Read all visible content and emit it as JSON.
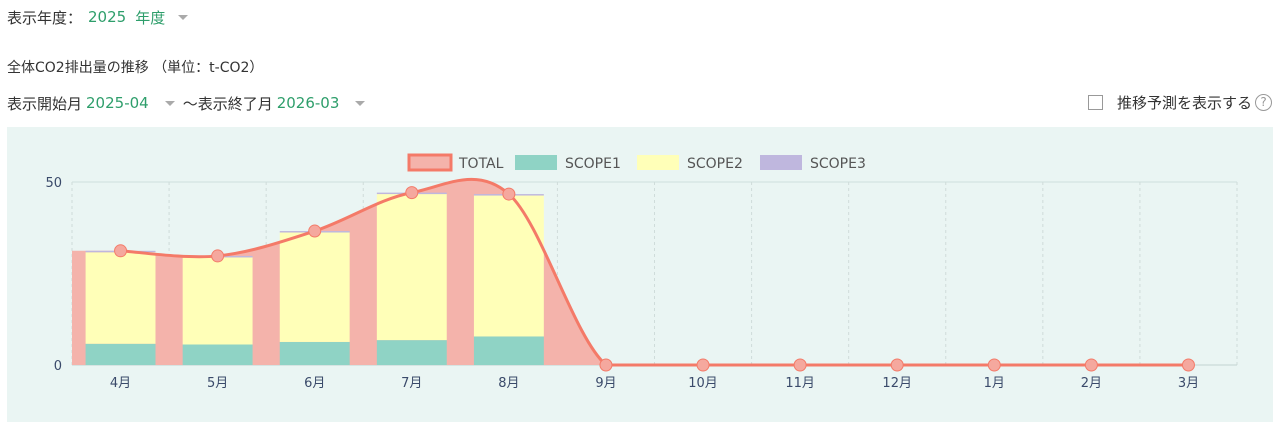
{
  "year_selector": {
    "label": "表示年度：",
    "value": "2025",
    "unit": "年度"
  },
  "chart_title": "全体CO2排出量の推移 （単位：t-CO2）",
  "period": {
    "start_label": "表示開始月",
    "start_value": "2025-04",
    "end_label": "～表示終了月",
    "end_value": "2026-03"
  },
  "forecast_toggle": {
    "label": "推移予測を表示する",
    "checked": false,
    "help_icon": "question-circle-icon"
  },
  "colors": {
    "total_fill": "#f4b3ab",
    "total_line": "#f47a68",
    "scope1": "#8fd3c5",
    "scope2": "#ffffb8",
    "scope3": "#bfb7de",
    "panel_bg": "#eaf5f3",
    "accent": "#2e9e6b"
  },
  "chart_data": {
    "type": "bar",
    "stacked": true,
    "categories": [
      "4月",
      "5月",
      "6月",
      "7月",
      "8月",
      "9月",
      "10月",
      "11月",
      "12月",
      "1月",
      "2月",
      "3月"
    ],
    "series": [
      {
        "name": "TOTAL",
        "type": "area",
        "values": [
          31.2,
          29.8,
          36.6,
          47.1,
          46.7,
          0,
          0,
          0,
          0,
          0,
          0,
          0
        ]
      },
      {
        "name": "SCOPE1",
        "values": [
          5.8,
          5.6,
          6.3,
          6.8,
          7.8,
          0,
          0,
          0,
          0,
          0,
          0,
          0
        ]
      },
      {
        "name": "SCOPE2",
        "values": [
          25.0,
          23.8,
          29.9,
          39.9,
          38.5,
          0,
          0,
          0,
          0,
          0,
          0,
          0
        ]
      },
      {
        "name": "SCOPE3",
        "values": [
          0.4,
          0.4,
          0.4,
          0.4,
          0.4,
          0,
          0,
          0,
          0,
          0,
          0,
          0
        ]
      }
    ],
    "yticks": [
      "0",
      "50"
    ],
    "ylim": [
      0,
      50
    ],
    "grid": true,
    "legend_position": "top-center"
  }
}
